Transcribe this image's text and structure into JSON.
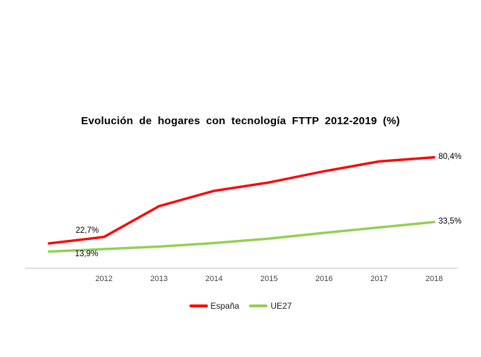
{
  "chart": {
    "title": "Evolución de hogares con tecnología FTTP 2012-2019 (%)",
    "axis_color": "#d6d6d6",
    "background": "#ffffff"
  },
  "chart_data": {
    "type": "line",
    "title": "Evolución de hogares con tecnología FTTP 2012-2019 (%)",
    "categories": [
      "",
      "2012",
      "2013",
      "2014",
      "2015",
      "2016",
      "2017",
      "2018"
    ],
    "x_tick_labels": [
      "2012",
      "2013",
      "2014",
      "2015",
      "2016",
      "2017",
      "2018"
    ],
    "series": [
      {
        "name": "España",
        "color": "#ff0000",
        "values": [
          18.0,
          22.7,
          45.0,
          56.1,
          62.2,
          70.3,
          77.4,
          80.4
        ]
      },
      {
        "name": "UE27",
        "color": "#92d050",
        "values": [
          12.1,
          13.9,
          15.7,
          18.3,
          21.5,
          25.7,
          29.6,
          33.5
        ]
      }
    ],
    "annotations": [
      {
        "series": 0,
        "point": 1,
        "text": "22,7%",
        "placement": "above-left"
      },
      {
        "series": 1,
        "point": 1,
        "text": "13,9%",
        "placement": "below-left"
      },
      {
        "series": 0,
        "point": 7,
        "text": "80,4%",
        "placement": "right"
      },
      {
        "series": 1,
        "point": 7,
        "text": "33,5%",
        "placement": "right"
      }
    ],
    "ylim": [
      0,
      90
    ],
    "xlabel": "",
    "ylabel": "",
    "grid": false,
    "legend_position": "bottom"
  }
}
